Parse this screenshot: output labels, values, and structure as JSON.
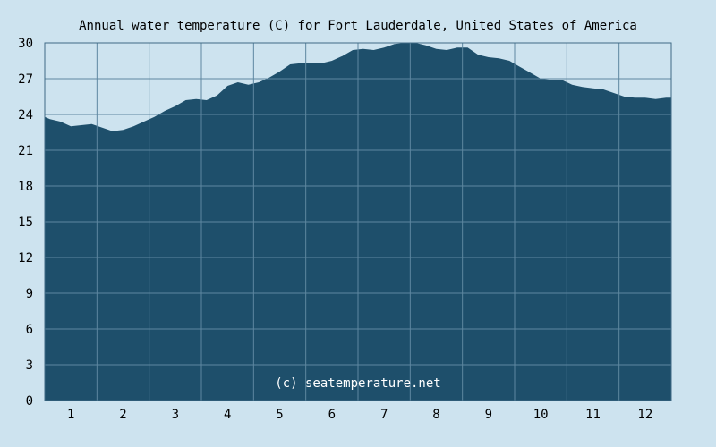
{
  "chart_data": {
    "type": "area",
    "title": "Annual water temperature (C) for Fort Lauderdale, United States of America",
    "xlabel": "",
    "ylabel": "",
    "ylim": [
      0,
      30
    ],
    "y_ticks": [
      0,
      3,
      6,
      9,
      12,
      15,
      18,
      21,
      24,
      27,
      30
    ],
    "x_ticks": [
      "1",
      "2",
      "3",
      "4",
      "5",
      "6",
      "7",
      "8",
      "9",
      "10",
      "11",
      "12"
    ],
    "xlim": [
      0.5,
      12.5
    ],
    "grid": true,
    "legend": "none",
    "watermark": "(c) seatemperature.net",
    "colors": {
      "background": "#cde3ef",
      "area_fill": "#1e4f6b",
      "grid": "#5e87a0",
      "axis": "#3f6a85"
    },
    "series": [
      {
        "x": [
          0.5,
          0.6,
          0.8,
          1.0,
          1.2,
          1.4,
          1.6,
          1.8,
          2.0,
          2.2,
          2.4,
          2.6,
          2.8,
          3.0,
          3.2,
          3.4,
          3.6,
          3.8,
          4.0,
          4.2,
          4.4,
          4.6,
          4.8,
          5.0,
          5.2,
          5.4,
          5.6,
          5.8,
          6.0,
          6.2,
          6.4,
          6.6,
          6.8,
          7.0,
          7.2,
          7.4,
          7.6,
          7.8,
          8.0,
          8.2,
          8.4,
          8.6,
          8.8,
          9.0,
          9.2,
          9.4,
          9.6,
          9.8,
          10.0,
          10.2,
          10.4,
          10.6,
          10.8,
          11.0,
          11.2,
          11.4,
          11.6,
          11.8,
          12.0,
          12.2,
          12.4,
          12.5
        ],
        "values": [
          23.8,
          23.6,
          23.4,
          23.0,
          23.1,
          23.2,
          22.9,
          22.6,
          22.7,
          23.0,
          23.4,
          23.8,
          24.3,
          24.7,
          25.2,
          25.3,
          25.2,
          25.6,
          26.4,
          26.7,
          26.5,
          26.7,
          27.1,
          27.6,
          28.2,
          28.3,
          28.3,
          28.3,
          28.5,
          28.9,
          29.4,
          29.5,
          29.4,
          29.6,
          29.9,
          30.0,
          30.0,
          29.8,
          29.5,
          29.4,
          29.6,
          29.6,
          29.0,
          28.8,
          28.7,
          28.5,
          28.0,
          27.5,
          27.0,
          26.9,
          26.9,
          26.5,
          26.3,
          26.2,
          26.1,
          25.8,
          25.5,
          25.4,
          25.4,
          25.3,
          25.4,
          25.4
        ]
      }
    ]
  }
}
